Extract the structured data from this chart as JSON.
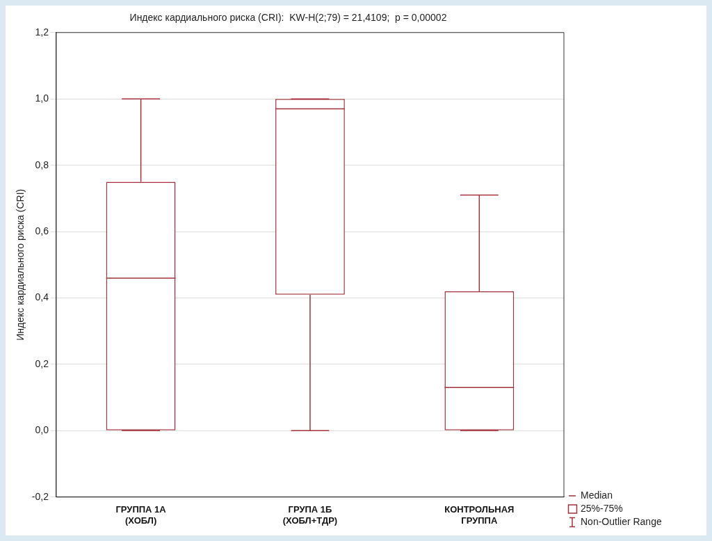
{
  "chart_data": {
    "type": "box",
    "title": "Индекс кардиального риска (CRI):  KW-H(2;79) = 21,4109;  p = 0,00002",
    "ylabel": "Индекс кардиального риска (CRI)",
    "categories": [
      "ГРУППА 1А\n(ХОБЛ)",
      "ГРУПА 1Б\n(ХОБЛ+ТДР)",
      "КОНТРОЛЬНАЯ\nГРУППА"
    ],
    "series": [
      {
        "color": "#a3303a",
        "boxes": [
          {
            "low": 0,
            "q1": 0,
            "median": 0.46,
            "q3": 0.75,
            "high": 1.0
          },
          {
            "low": 0,
            "q1": 0.41,
            "median": 0.97,
            "q3": 1.0,
            "high": 1.0
          },
          {
            "low": 0,
            "q1": 0,
            "median": 0.13,
            "q3": 0.42,
            "high": 0.71
          }
        ]
      }
    ],
    "ylim": [
      -0.2,
      1.2
    ],
    "yticks": [
      {
        "value": -0.2,
        "label": "-0,2"
      },
      {
        "value": 0,
        "label": "0,0"
      },
      {
        "value": 0.2,
        "label": "0,2"
      },
      {
        "value": 0.4,
        "label": "0,4"
      },
      {
        "value": 0.6,
        "label": "0,6"
      },
      {
        "value": 0.8,
        "label": "0,8"
      },
      {
        "value": 1.0,
        "label": "1,0"
      },
      {
        "value": 1.2,
        "label": "1,2"
      }
    ],
    "grid": "y",
    "annotations": [
      "Median",
      "25%-75%",
      "Non-Outlier Range"
    ]
  }
}
